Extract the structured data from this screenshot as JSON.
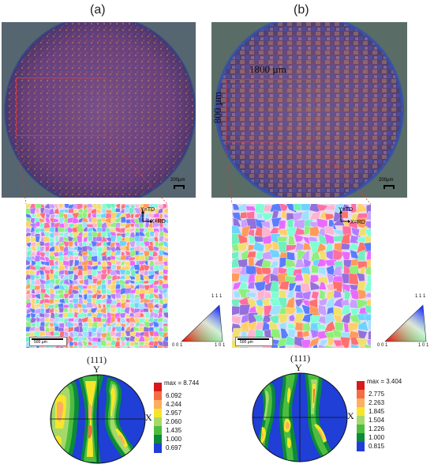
{
  "panels": [
    {
      "label": "(a)",
      "micrograph_scalebar": "200µm",
      "ebsd_scalebar": "500 µm",
      "ebsd_axes": {
        "y": "Y=TD",
        "x": "X=RD"
      },
      "ipf_corners": {
        "top": "1 1 1",
        "left": "0 0 1",
        "right": "1 0 1"
      },
      "pole_figure": {
        "title": "(111)",
        "axis_y": "Y",
        "axis_x": "X",
        "max_label": "max = 8.744",
        "levels": [
          "6.092",
          "4.244",
          "2.957",
          "2.060",
          "1.435",
          "1.000",
          "0.697"
        ],
        "level_colors": [
          "#d7191c",
          "#f46d43",
          "#fdae61",
          "#f6e629",
          "#a6d96a",
          "#4dbd3f",
          "#0b8a3a",
          "#1f3fd6"
        ]
      }
    },
    {
      "label": "(b)",
      "micrograph_scalebar": "200µm",
      "roi_width_label": "1800 µm",
      "roi_height_label": "800 µm",
      "ebsd_scalebar": "500 µm",
      "ebsd_axes": {
        "y": "Y=TD",
        "x": "X=RD"
      },
      "ipf_corners": {
        "top": "1 1 1",
        "left": "0 0 1",
        "right": "1 0 1"
      },
      "pole_figure": {
        "title": "(111)",
        "axis_y": "Y",
        "axis_x": "X",
        "max_label": "max = 3.404",
        "levels": [
          "2.775",
          "2.263",
          "1.845",
          "1.504",
          "1.226",
          "1.000",
          "0.815"
        ],
        "level_colors": [
          "#d7191c",
          "#f46d43",
          "#fdae61",
          "#f6e629",
          "#a6d96a",
          "#4dbd3f",
          "#0b8a3a",
          "#1f3fd6"
        ]
      }
    }
  ]
}
